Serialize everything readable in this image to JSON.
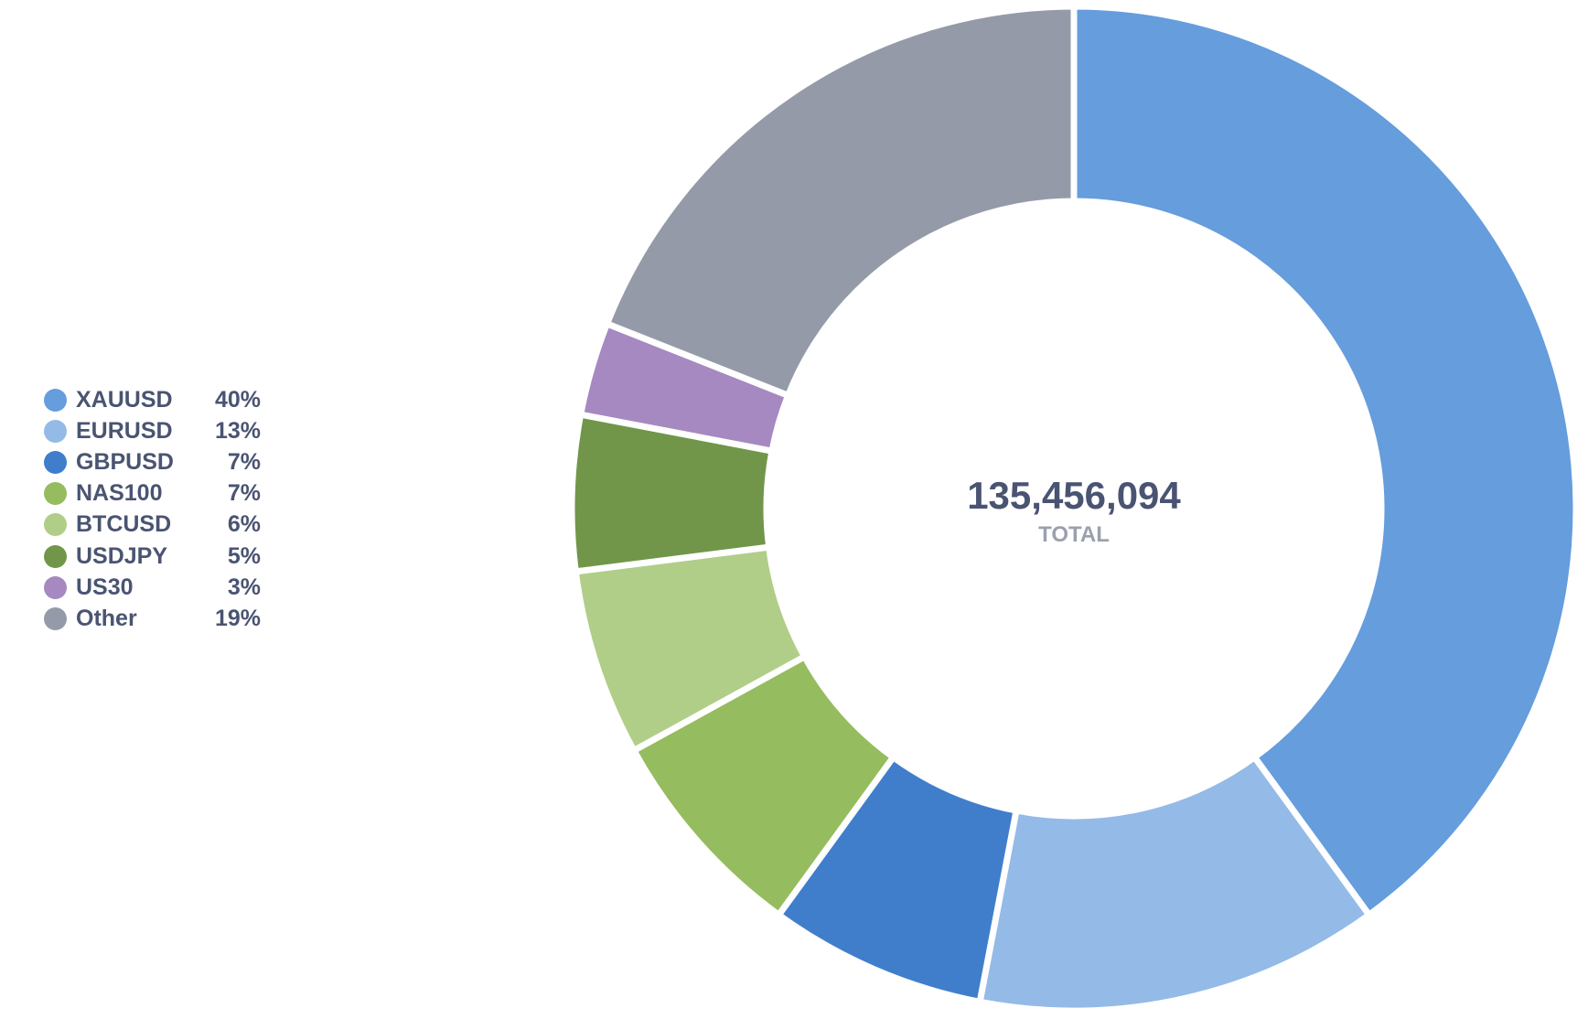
{
  "chart_data": {
    "type": "pie",
    "variant": "donut",
    "categories": [
      "XAUUSD",
      "EURUSD",
      "GBPUSD",
      "NAS100",
      "BTCUSD",
      "USDJPY",
      "US30",
      "Other"
    ],
    "values": [
      40,
      13,
      7,
      7,
      6,
      5,
      3,
      19
    ],
    "value_labels": [
      "40%",
      "13%",
      "7%",
      "7%",
      "6%",
      "5%",
      "3%",
      "19%"
    ],
    "colors": [
      "#659ddd",
      "#94bae7",
      "#407ecc",
      "#95bc5e",
      "#b0ce88",
      "#71964a",
      "#a589c0",
      "#959aa8"
    ],
    "center": {
      "value": "135,456,094",
      "label": "TOTAL"
    },
    "legend_position": "left"
  }
}
